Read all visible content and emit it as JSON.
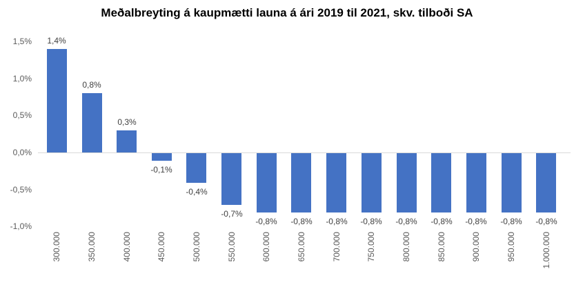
{
  "chart_data": {
    "type": "bar",
    "title": "Meðalbreyting á kaupmætti launa á ári 2019 til 2021, skv. tilboði SA",
    "categories": [
      "300.000",
      "350.000",
      "400.000",
      "450.000",
      "500.000",
      "550.000",
      "600.000",
      "650.000",
      "700.000",
      "750.000",
      "800.000",
      "850.000",
      "900.000",
      "950.000",
      "1.000.000"
    ],
    "values": [
      1.4,
      0.8,
      0.3,
      -0.1,
      -0.4,
      -0.7,
      -0.8,
      -0.8,
      -0.8,
      -0.8,
      -0.8,
      -0.8,
      -0.8,
      -0.8,
      -0.8
    ],
    "value_labels": [
      "1,4%",
      "0,8%",
      "0,3%",
      "-0,1%",
      "-0,4%",
      "-0,7%",
      "-0,8%",
      "-0,8%",
      "-0,8%",
      "-0,8%",
      "-0,8%",
      "-0,8%",
      "-0,8%",
      "-0,8%",
      "-0,8%"
    ],
    "xlabel": "",
    "ylabel": "",
    "ylim": [
      -1.0,
      1.5
    ],
    "y_ticks": [
      {
        "value": 1.5,
        "label": "1,5%"
      },
      {
        "value": 1.0,
        "label": "1,0%"
      },
      {
        "value": 0.5,
        "label": "0,5%"
      },
      {
        "value": 0.0,
        "label": "0,0%"
      },
      {
        "value": -0.5,
        "label": "-0,5%"
      },
      {
        "value": -1.0,
        "label": "-1,0%"
      }
    ],
    "grid": false,
    "legend": false,
    "colors": {
      "bar": "#4472C4",
      "axis_line": "#D9D9D9",
      "data_label": "#404040",
      "tick_label": "#595959",
      "title": "#000000"
    }
  }
}
